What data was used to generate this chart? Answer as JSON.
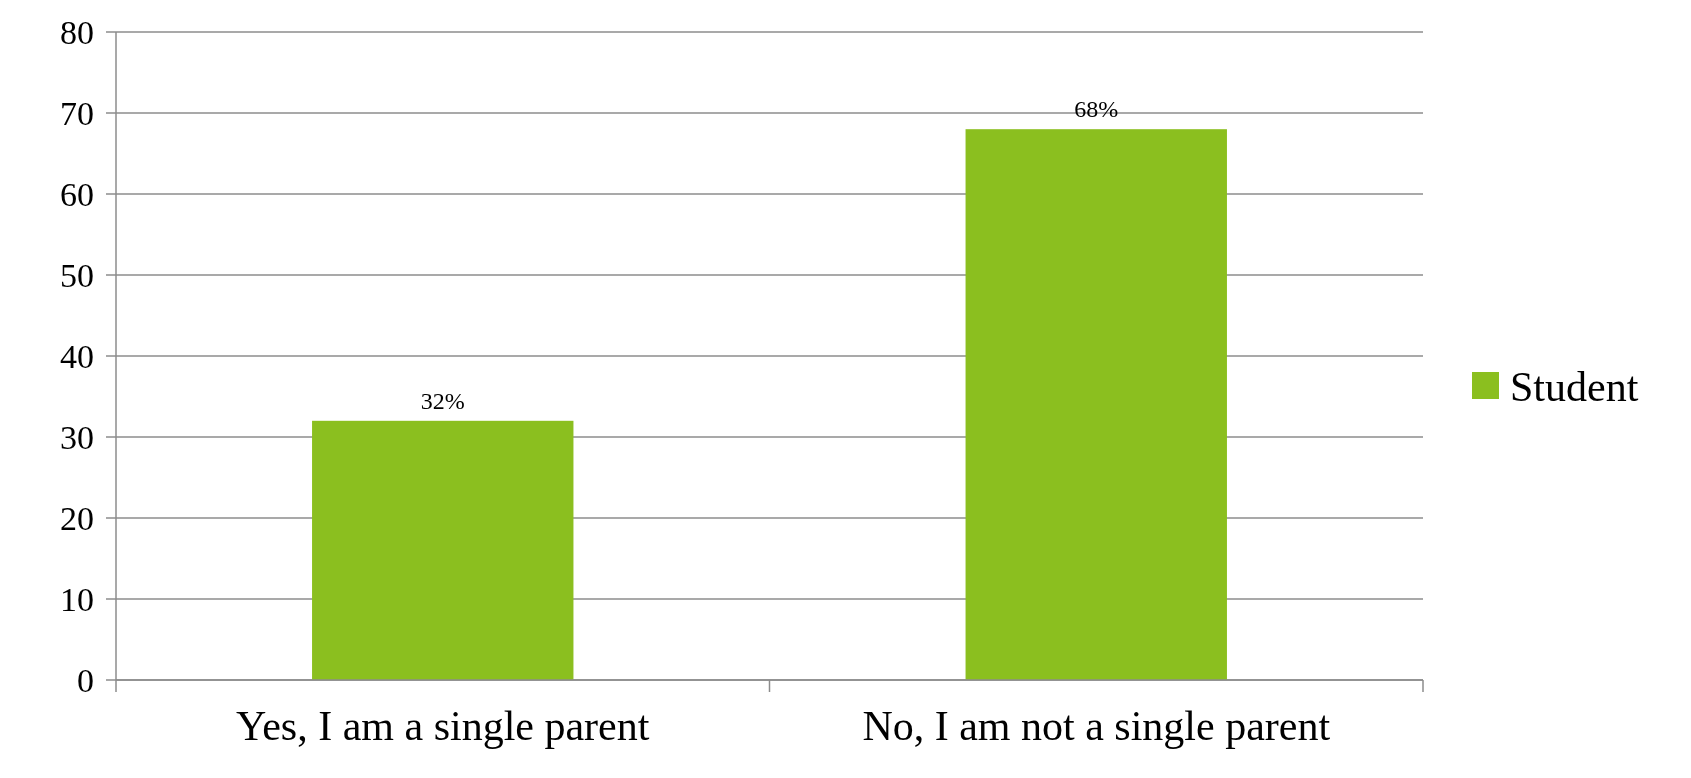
{
  "chart_data": {
    "type": "bar",
    "categories": [
      "Yes, I am a single parent",
      "No, I am not a single parent"
    ],
    "series": [
      {
        "name": "Student",
        "color": "#8bbf1f",
        "values": [
          32,
          68
        ],
        "value_labels": [
          "32%",
          "68%"
        ]
      }
    ],
    "ylim": [
      0,
      80
    ],
    "yticks": [
      0,
      10,
      20,
      30,
      40,
      50,
      60,
      70,
      80
    ],
    "grid": "y",
    "legend": "right"
  }
}
